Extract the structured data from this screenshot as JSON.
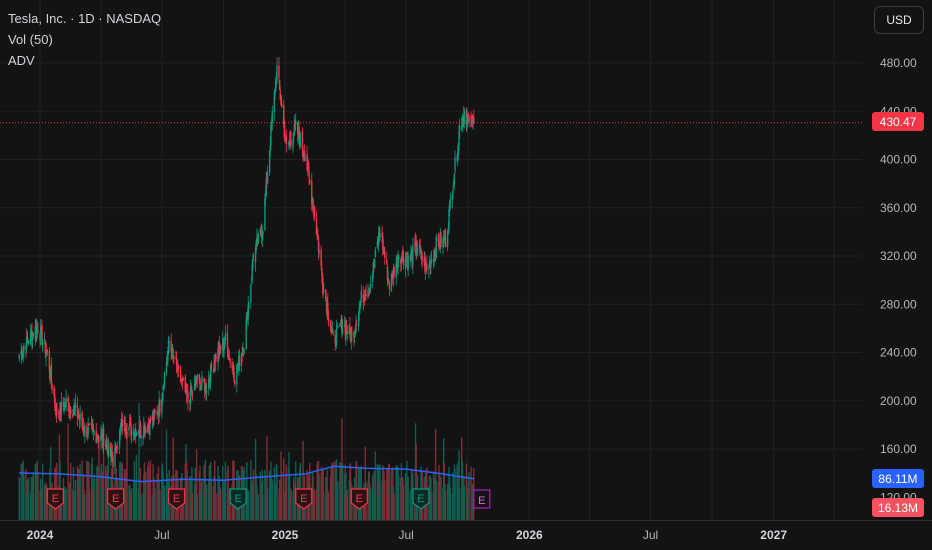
{
  "header": {
    "symbol_line": "Tesla, Inc. · 1D · NASDAQ",
    "indicator_vol": "Vol (50)",
    "indicator_adv": "ADV",
    "currency": "USD"
  },
  "price_tags": {
    "last_price": "430.47",
    "last_price_color": "#f23645",
    "volume_ma": "86.11M",
    "volume_ma_color": "#2962ff",
    "volume_last": "16.13M",
    "volume_last_color": "#f7525f"
  },
  "earnings_marker_label": "E",
  "chart_data": {
    "type": "candlestick",
    "price_axis": {
      "ticks": [
        160,
        200,
        240,
        280,
        320,
        360,
        400,
        440,
        480
      ],
      "tick_labels": [
        "160.00",
        "200.00",
        "240.00",
        "280.00",
        "320.00",
        "360.00",
        "400.00",
        "440.00",
        "480.00"
      ],
      "partially_hidden_tick": "120.00"
    },
    "time_axis": {
      "labels": [
        "2024",
        "Jul",
        "2025",
        "Jul",
        "2026",
        "Jul",
        "2027"
      ],
      "bold_labels": [
        "2024",
        "2025",
        "2026",
        "2027"
      ]
    },
    "last_price": 430.47,
    "colors": {
      "up": "#089981",
      "down": "#f23645",
      "volume_up": "#0b5f53",
      "volume_down": "#7b2f33",
      "ma_line": "#2962ff"
    },
    "price_series": [
      {
        "date": "2023-12-01",
        "close": 238
      },
      {
        "date": "2023-12-15",
        "close": 252
      },
      {
        "date": "2023-12-29",
        "close": 262
      },
      {
        "date": "2024-01-12",
        "close": 238
      },
      {
        "date": "2024-01-26",
        "close": 190
      },
      {
        "date": "2024-02-09",
        "close": 198
      },
      {
        "date": "2024-02-23",
        "close": 192
      },
      {
        "date": "2024-03-08",
        "close": 176
      },
      {
        "date": "2024-03-22",
        "close": 172
      },
      {
        "date": "2024-04-05",
        "close": 170
      },
      {
        "date": "2024-04-19",
        "close": 150
      },
      {
        "date": "2024-05-03",
        "close": 182
      },
      {
        "date": "2024-05-17",
        "close": 176
      },
      {
        "date": "2024-05-31",
        "close": 176
      },
      {
        "date": "2024-06-14",
        "close": 182
      },
      {
        "date": "2024-06-28",
        "close": 196
      },
      {
        "date": "2024-07-12",
        "close": 248
      },
      {
        "date": "2024-07-26",
        "close": 222
      },
      {
        "date": "2024-08-09",
        "close": 200
      },
      {
        "date": "2024-08-23",
        "close": 216
      },
      {
        "date": "2024-09-06",
        "close": 212
      },
      {
        "date": "2024-09-20",
        "close": 238
      },
      {
        "date": "2024-10-04",
        "close": 250
      },
      {
        "date": "2024-10-18",
        "close": 220
      },
      {
        "date": "2024-11-01",
        "close": 248
      },
      {
        "date": "2024-11-15",
        "close": 320
      },
      {
        "date": "2024-11-29",
        "close": 345
      },
      {
        "date": "2024-12-13",
        "close": 436
      },
      {
        "date": "2024-12-20",
        "close": 475
      },
      {
        "date": "2025-01-03",
        "close": 410
      },
      {
        "date": "2025-01-17",
        "close": 426
      },
      {
        "date": "2025-01-31",
        "close": 404
      },
      {
        "date": "2025-02-14",
        "close": 355
      },
      {
        "date": "2025-02-28",
        "close": 292
      },
      {
        "date": "2025-03-14",
        "close": 250
      },
      {
        "date": "2025-03-28",
        "close": 264
      },
      {
        "date": "2025-04-11",
        "close": 252
      },
      {
        "date": "2025-04-25",
        "close": 285
      },
      {
        "date": "2025-05-09",
        "close": 298
      },
      {
        "date": "2025-05-23",
        "close": 342
      },
      {
        "date": "2025-06-06",
        "close": 296
      },
      {
        "date": "2025-06-20",
        "close": 322
      },
      {
        "date": "2025-07-04",
        "close": 316
      },
      {
        "date": "2025-07-18",
        "close": 328
      },
      {
        "date": "2025-08-01",
        "close": 308
      },
      {
        "date": "2025-08-15",
        "close": 330
      },
      {
        "date": "2025-08-29",
        "close": 333
      },
      {
        "date": "2025-09-12",
        "close": 395
      },
      {
        "date": "2025-09-19",
        "close": 426
      },
      {
        "date": "2025-09-26",
        "close": 440
      },
      {
        "date": "2025-10-03",
        "close": 429
      },
      {
        "date": "2025-10-10",
        "close": 430.47
      }
    ],
    "volume_ma_series": [
      {
        "date": "2023-12-01",
        "value": 98
      },
      {
        "date": "2024-02-01",
        "value": 96
      },
      {
        "date": "2024-04-01",
        "value": 90
      },
      {
        "date": "2024-06-01",
        "value": 80
      },
      {
        "date": "2024-08-01",
        "value": 85
      },
      {
        "date": "2024-10-01",
        "value": 83
      },
      {
        "date": "2024-12-01",
        "value": 90
      },
      {
        "date": "2025-02-01",
        "value": 96
      },
      {
        "date": "2025-03-15",
        "value": 112
      },
      {
        "date": "2025-05-01",
        "value": 108
      },
      {
        "date": "2025-07-01",
        "value": 106
      },
      {
        "date": "2025-08-15",
        "value": 98
      },
      {
        "date": "2025-10-10",
        "value": 86.11
      }
    ],
    "volume_last": 16.13,
    "earnings_events": [
      {
        "date": "2024-01-24",
        "result": "down"
      },
      {
        "date": "2024-04-23",
        "result": "down"
      },
      {
        "date": "2024-07-23",
        "result": "down"
      },
      {
        "date": "2024-10-23",
        "result": "up"
      },
      {
        "date": "2025-01-29",
        "result": "down"
      },
      {
        "date": "2025-04-22",
        "result": "down"
      },
      {
        "date": "2025-07-23",
        "result": "up"
      },
      {
        "date": "2025-10-22",
        "result": "upcoming"
      }
    ]
  }
}
